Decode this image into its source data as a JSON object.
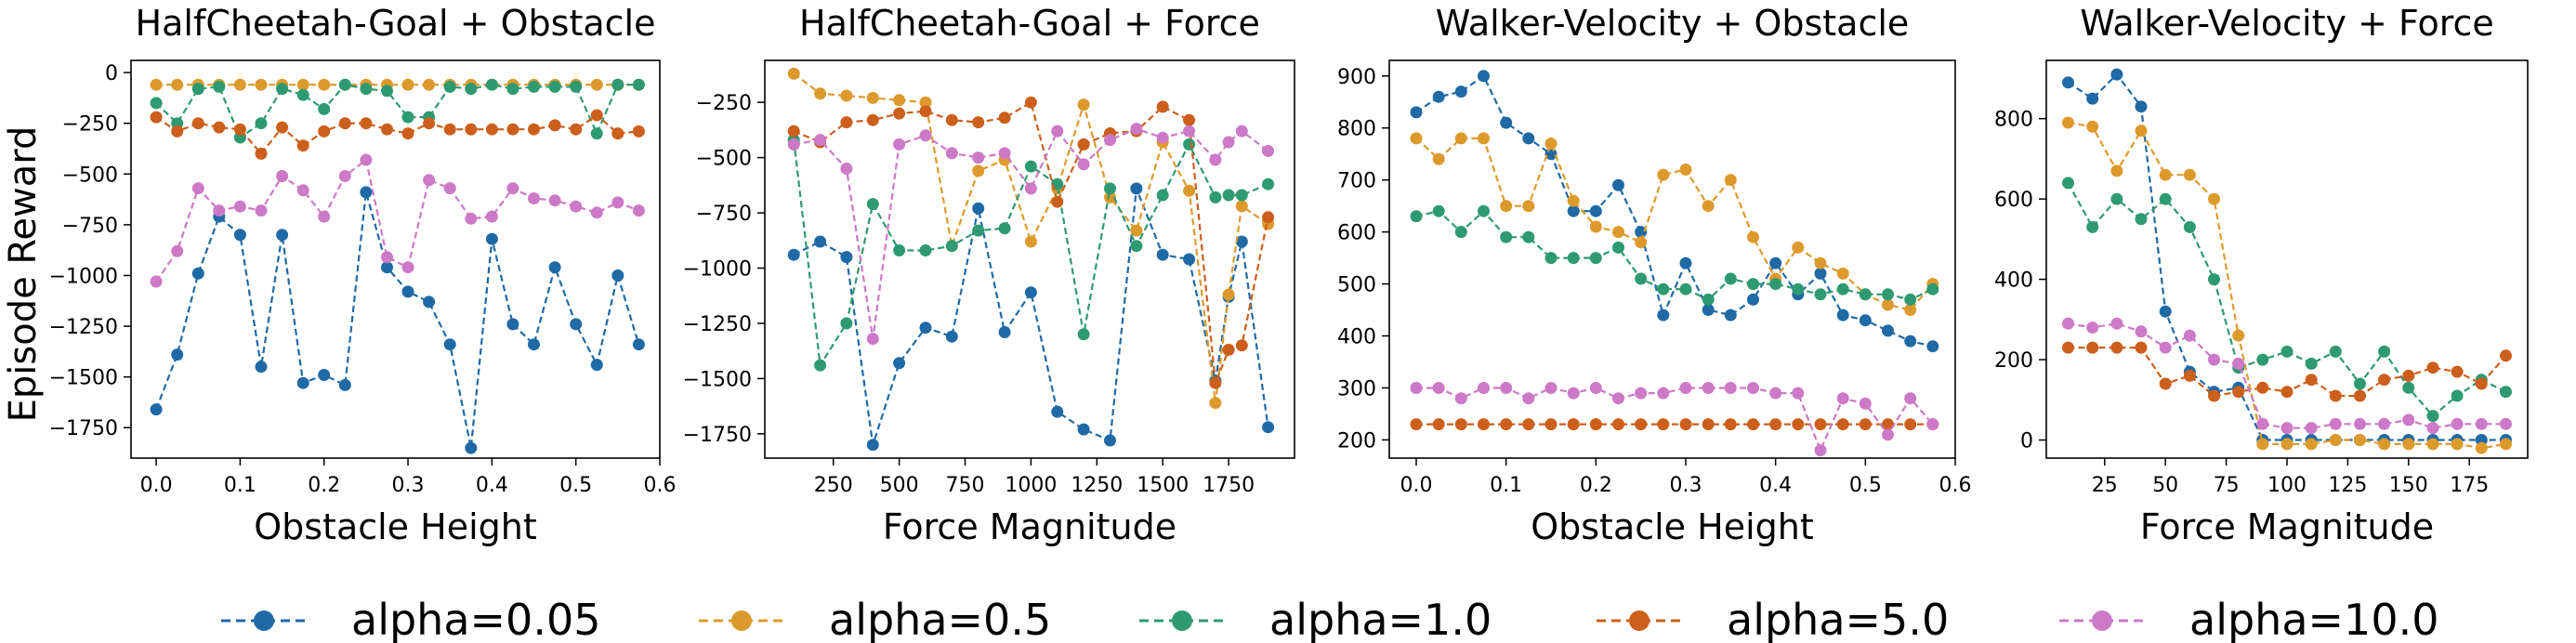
{
  "figure": {
    "ylabel": "Episode Reward"
  },
  "series_styles": [
    {
      "name": "alpha=0.05",
      "color": "#1f6aa5"
    },
    {
      "name": "alpha=0.5",
      "color": "#dd9a2c"
    },
    {
      "name": "alpha=1.0",
      "color": "#2e9a72"
    },
    {
      "name": "alpha=5.0",
      "color": "#cc5f1c"
    },
    {
      "name": "alpha=10.0",
      "color": "#cc79c7"
    }
  ],
  "legend": {
    "location": "bottom-center",
    "labels": [
      "alpha=0.05",
      "alpha=0.5",
      "alpha=1.0",
      "alpha=5.0",
      "alpha=10.0"
    ]
  },
  "chart_data": [
    {
      "type": "line",
      "title": "HalfCheetah-Goal + Obstacle",
      "xlabel": "Obstacle Height",
      "ylabel": "Episode Reward",
      "xlim": [
        -0.03,
        0.6
      ],
      "ylim": [
        -1900,
        60
      ],
      "xticks": [
        0.0,
        0.1,
        0.2,
        0.3,
        0.4,
        0.5,
        0.6
      ],
      "xtick_labels": [
        "0.0",
        "0.1",
        "0.2",
        "0.3",
        "0.4",
        "0.5",
        "0.6"
      ],
      "yticks": [
        0,
        -250,
        -500,
        -750,
        -1000,
        -1250,
        -1500,
        -1750
      ],
      "ytick_labels": [
        "0",
        "−250",
        "−500",
        "−750",
        "−1000",
        "−1250",
        "−1500",
        "−1750"
      ],
      "x": [
        0.0,
        0.025,
        0.05,
        0.075,
        0.1,
        0.125,
        0.15,
        0.175,
        0.2,
        0.225,
        0.25,
        0.275,
        0.3,
        0.325,
        0.35,
        0.375,
        0.4,
        0.425,
        0.45,
        0.475,
        0.5,
        0.525,
        0.55,
        0.575
      ],
      "series": [
        {
          "name": "alpha=0.05",
          "values": [
            -1660,
            -1390,
            -990,
            -710,
            -800,
            -1450,
            -800,
            -1530,
            -1490,
            -1540,
            -590,
            -960,
            -1080,
            -1130,
            -1340,
            -1850,
            -820,
            -1240,
            -1340,
            -960,
            -1240,
            -1440,
            -1000,
            -1340
          ]
        },
        {
          "name": "alpha=0.5",
          "values": [
            -60,
            -60,
            -60,
            -60,
            -60,
            -60,
            -60,
            -60,
            -60,
            -60,
            -60,
            -60,
            -60,
            -60,
            -60,
            -60,
            -60,
            -60,
            -60,
            -60,
            -60,
            -60,
            -60,
            -60
          ]
        },
        {
          "name": "alpha=1.0",
          "values": [
            -150,
            -250,
            -80,
            -70,
            -320,
            -250,
            -80,
            -110,
            -180,
            -60,
            -80,
            -90,
            -220,
            -220,
            -70,
            -80,
            -60,
            -80,
            -70,
            -70,
            -70,
            -300,
            -60,
            -60
          ]
        },
        {
          "name": "alpha=5.0",
          "values": [
            -220,
            -290,
            -250,
            -270,
            -280,
            -400,
            -270,
            -360,
            -290,
            -250,
            -250,
            -280,
            -300,
            -250,
            -280,
            -280,
            -280,
            -280,
            -280,
            -260,
            -280,
            -210,
            -300,
            -290
          ]
        },
        {
          "name": "alpha=10.0",
          "values": [
            -1030,
            -880,
            -570,
            -680,
            -660,
            -680,
            -510,
            -580,
            -710,
            -510,
            -430,
            -910,
            -960,
            -530,
            -570,
            -720,
            -710,
            -570,
            -620,
            -630,
            -660,
            -690,
            -640,
            -680
          ]
        }
      ]
    },
    {
      "type": "line",
      "title": "HalfCheetah-Goal + Force",
      "xlabel": "Force Magnitude",
      "ylabel": "",
      "xlim": [
        -10,
        2000
      ],
      "ylim": [
        -1860,
        -60
      ],
      "xticks": [
        250,
        500,
        750,
        1000,
        1250,
        1500,
        1750
      ],
      "xtick_labels": [
        "250",
        "500",
        "750",
        "1000",
        "1250",
        "1500",
        "1750"
      ],
      "yticks": [
        -250,
        -500,
        -750,
        -1000,
        -1250,
        -1500,
        -1750
      ],
      "ytick_labels": [
        "−250",
        "−500",
        "−750",
        "−1000",
        "−1250",
        "−1500",
        "−1750"
      ],
      "x": [
        100,
        200,
        300,
        400,
        500,
        600,
        700,
        800,
        900,
        1000,
        1100,
        1200,
        1300,
        1400,
        1500,
        1600,
        1700,
        1750,
        1800,
        1900
      ],
      "series": [
        {
          "name": "alpha=0.05",
          "values": [
            -940,
            -880,
            -950,
            -1800,
            -1430,
            -1270,
            -1310,
            -730,
            -1290,
            -1110,
            -1650,
            -1730,
            -1780,
            -640,
            -940,
            -960,
            -1510,
            -1130,
            -880,
            -1720
          ]
        },
        {
          "name": "alpha=0.5",
          "values": [
            -120,
            -210,
            -220,
            -230,
            -240,
            -250,
            -900,
            -560,
            -510,
            -880,
            -640,
            -260,
            -680,
            -830,
            -430,
            -650,
            -1610,
            -1120,
            -720,
            -800
          ]
        },
        {
          "name": "alpha=1.0",
          "values": [
            -420,
            -1440,
            -1250,
            -710,
            -920,
            -920,
            -900,
            -830,
            -820,
            -540,
            -620,
            -1300,
            -640,
            -900,
            -670,
            -440,
            -680,
            -670,
            -670,
            -620
          ]
        },
        {
          "name": "alpha=5.0",
          "values": [
            -380,
            -430,
            -340,
            -330,
            -300,
            -290,
            -330,
            -340,
            -320,
            -250,
            -700,
            -440,
            -390,
            -380,
            -270,
            -330,
            -1520,
            -1370,
            -1350,
            -770
          ]
        },
        {
          "name": "alpha=10.0",
          "values": [
            -440,
            -420,
            -550,
            -1320,
            -440,
            -400,
            -480,
            -500,
            -480,
            -640,
            -380,
            -530,
            -420,
            -370,
            -410,
            -380,
            -510,
            -430,
            -380,
            -470
          ]
        }
      ]
    },
    {
      "type": "line",
      "title": "Walker-Velocity + Obstacle",
      "xlabel": "Obstacle Height",
      "ylabel": "",
      "xlim": [
        -0.03,
        0.6
      ],
      "ylim": [
        165,
        930
      ],
      "xticks": [
        0.0,
        0.1,
        0.2,
        0.3,
        0.4,
        0.5,
        0.6
      ],
      "xtick_labels": [
        "0.0",
        "0.1",
        "0.2",
        "0.3",
        "0.4",
        "0.5",
        "0.6"
      ],
      "yticks": [
        200,
        300,
        400,
        500,
        600,
        700,
        800,
        900
      ],
      "ytick_labels": [
        "200",
        "300",
        "400",
        "500",
        "600",
        "700",
        "800",
        "900"
      ],
      "x": [
        0.0,
        0.025,
        0.05,
        0.075,
        0.1,
        0.125,
        0.15,
        0.175,
        0.2,
        0.225,
        0.25,
        0.275,
        0.3,
        0.325,
        0.35,
        0.375,
        0.4,
        0.425,
        0.45,
        0.475,
        0.5,
        0.525,
        0.55,
        0.575
      ],
      "series": [
        {
          "name": "alpha=0.05",
          "values": [
            830,
            860,
            870,
            900,
            810,
            780,
            750,
            640,
            640,
            690,
            600,
            440,
            540,
            450,
            440,
            470,
            540,
            480,
            520,
            440,
            430,
            410,
            390,
            380
          ]
        },
        {
          "name": "alpha=0.5",
          "values": [
            780,
            740,
            780,
            780,
            650,
            650,
            770,
            660,
            610,
            600,
            580,
            710,
            720,
            650,
            700,
            590,
            510,
            570,
            540,
            520,
            480,
            460,
            450,
            500
          ]
        },
        {
          "name": "alpha=1.0",
          "values": [
            630,
            640,
            600,
            640,
            590,
            590,
            550,
            550,
            550,
            570,
            510,
            490,
            490,
            470,
            510,
            500,
            500,
            490,
            480,
            490,
            480,
            480,
            470,
            490
          ]
        },
        {
          "name": "alpha=5.0",
          "values": [
            230,
            230,
            230,
            230,
            230,
            230,
            230,
            230,
            230,
            230,
            230,
            230,
            230,
            230,
            230,
            230,
            230,
            230,
            230,
            230,
            230,
            230,
            230,
            230
          ]
        },
        {
          "name": "alpha=10.0",
          "values": [
            300,
            300,
            280,
            300,
            300,
            280,
            300,
            290,
            300,
            280,
            290,
            290,
            300,
            300,
            300,
            300,
            290,
            290,
            180,
            280,
            270,
            210,
            280,
            230
          ]
        }
      ]
    },
    {
      "type": "line",
      "title": "Walker-Velocity + Force",
      "xlabel": "Force Magnitude",
      "ylabel": "",
      "xlim": [
        1,
        199
      ],
      "ylim": [
        -45,
        945
      ],
      "xticks": [
        25,
        50,
        75,
        100,
        125,
        150,
        175
      ],
      "xtick_labels": [
        "25",
        "50",
        "75",
        "100",
        "125",
        "150",
        "175"
      ],
      "yticks": [
        0,
        200,
        400,
        600,
        800
      ],
      "ytick_labels": [
        "0",
        "200",
        "400",
        "600",
        "800"
      ],
      "x": [
        10,
        20,
        30,
        40,
        50,
        60,
        70,
        80,
        90,
        100,
        110,
        120,
        130,
        140,
        150,
        160,
        170,
        180,
        190
      ],
      "series": [
        {
          "name": "alpha=0.05",
          "values": [
            890,
            850,
            910,
            830,
            320,
            170,
            120,
            130,
            0,
            0,
            0,
            0,
            0,
            0,
            0,
            0,
            0,
            0,
            0
          ]
        },
        {
          "name": "alpha=0.5",
          "values": [
            790,
            780,
            670,
            770,
            660,
            660,
            600,
            260,
            -10,
            -10,
            -10,
            0,
            0,
            -10,
            -10,
            -10,
            -10,
            -20,
            -10
          ]
        },
        {
          "name": "alpha=1.0",
          "values": [
            640,
            530,
            600,
            550,
            600,
            530,
            400,
            180,
            200,
            220,
            190,
            220,
            140,
            220,
            130,
            60,
            110,
            150,
            120
          ]
        },
        {
          "name": "alpha=5.0",
          "values": [
            230,
            230,
            230,
            230,
            140,
            160,
            110,
            120,
            130,
            120,
            150,
            110,
            110,
            150,
            160,
            180,
            170,
            140,
            210
          ]
        },
        {
          "name": "alpha=10.0",
          "values": [
            290,
            280,
            290,
            270,
            230,
            260,
            200,
            190,
            40,
            30,
            30,
            40,
            40,
            40,
            50,
            30,
            40,
            40,
            40
          ]
        }
      ]
    }
  ]
}
